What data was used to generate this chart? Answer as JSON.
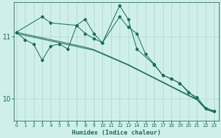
{
  "xlabel": "Humidex (Indice chaleur)",
  "background_color": "#cff0ea",
  "grid_color": "#b0d8d0",
  "line_color": "#1a6b5a",
  "x_ticks": [
    0,
    1,
    2,
    3,
    4,
    5,
    6,
    7,
    8,
    9,
    10,
    11,
    12,
    13,
    14,
    15,
    16,
    17,
    18,
    19,
    20,
    21,
    22,
    23
  ],
  "y_ticks": [
    10,
    11
  ],
  "ylim": [
    9.65,
    11.55
  ],
  "xlim": [
    -0.3,
    23.5
  ],
  "series": [
    {
      "x": [
        0,
        1,
        2,
        3,
        4,
        5,
        6,
        7,
        8,
        9,
        10,
        11,
        12,
        13,
        14,
        15,
        16,
        17,
        18,
        19,
        20,
        21,
        22,
        23
      ],
      "y": [
        11.05,
        11.02,
        10.99,
        10.96,
        10.93,
        10.9,
        10.87,
        10.84,
        10.81,
        10.78,
        10.72,
        10.66,
        10.6,
        10.54,
        10.47,
        10.4,
        10.33,
        10.26,
        10.19,
        10.12,
        10.05,
        9.98,
        9.83,
        9.78
      ],
      "has_markers": false
    },
    {
      "x": [
        0,
        1,
        2,
        3,
        4,
        5,
        6,
        7,
        8,
        9,
        10,
        11,
        12,
        13,
        14,
        15,
        16,
        17,
        18,
        19,
        20,
        21,
        22,
        23
      ],
      "y": [
        11.07,
        11.04,
        11.01,
        10.98,
        10.95,
        10.92,
        10.89,
        10.86,
        10.83,
        10.79,
        10.73,
        10.67,
        10.61,
        10.55,
        10.48,
        10.41,
        10.34,
        10.27,
        10.2,
        10.13,
        10.06,
        9.99,
        9.84,
        9.79
      ],
      "has_markers": false
    },
    {
      "x": [
        0,
        1,
        2,
        3,
        4,
        5,
        6,
        7,
        8,
        9,
        10,
        12,
        13,
        14,
        15,
        16,
        17,
        18,
        19,
        20,
        21,
        22,
        23
      ],
      "y": [
        11.07,
        10.95,
        10.88,
        10.62,
        10.85,
        10.88,
        10.8,
        11.18,
        11.05,
        10.97,
        10.9,
        11.32,
        11.15,
        11.05,
        10.72,
        10.56,
        10.38,
        10.32,
        10.25,
        10.1,
        10.02,
        9.85,
        9.8
      ],
      "has_markers": true
    },
    {
      "x": [
        0,
        3,
        4,
        7,
        8,
        9,
        10,
        12,
        13,
        14,
        16,
        17,
        18,
        19,
        22,
        23
      ],
      "y": [
        11.07,
        11.32,
        11.22,
        11.18,
        11.28,
        11.05,
        10.9,
        11.5,
        11.28,
        10.8,
        10.55,
        10.38,
        10.32,
        10.25,
        9.85,
        9.8
      ],
      "has_markers": true
    }
  ]
}
